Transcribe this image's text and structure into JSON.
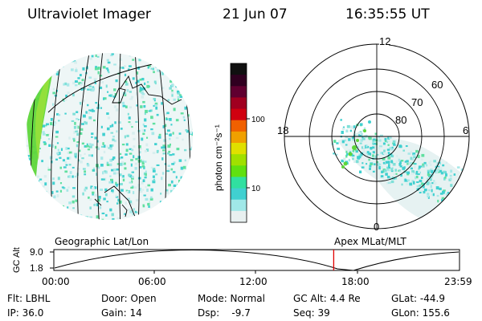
{
  "header": {
    "instrument": "Ultraviolet Imager",
    "date": "21 Jun 07",
    "time": "16:35:55 UT"
  },
  "colorbar": {
    "unit_label": "photon cm⁻²s⁻¹",
    "ticks": [
      "100",
      "10"
    ],
    "colors": [
      "#101010",
      "#300020",
      "#600030",
      "#a00020",
      "#d00010",
      "#f06000",
      "#f0a000",
      "#e0e000",
      "#a0e000",
      "#60e010",
      "#30e0a0",
      "#40d0d0",
      "#a0e8e8",
      "#e8f0f0"
    ]
  },
  "panels": {
    "left_label": "Geographic Lat/Lon",
    "right_label": "Apex  MLat/MLT"
  },
  "polar": {
    "clock": {
      "top": "12",
      "left": "18",
      "right": "6",
      "bottom": "0"
    },
    "lat_rings": [
      "60",
      "70",
      "80"
    ]
  },
  "altitude_plot": {
    "ylabel": "GC Alt",
    "yticks": [
      "9.0",
      "1.8"
    ],
    "xticks": [
      "00:00",
      "06:00",
      "12:00",
      "18:00",
      "23:59"
    ],
    "marker_time_fraction": 0.69
  },
  "info": {
    "row1": {
      "flt": "Flt: LBHL",
      "door": "Door: Open",
      "mode": "Mode: Normal",
      "gcalt": "GC Alt: 4.4 Re",
      "glat": "GLat: -44.9"
    },
    "row2": {
      "ip": "IP: 36.0",
      "gain": "Gain: 14",
      "dsp": "Dsp:    -9.7",
      "seq": "Seq: 39",
      "glon": "GLon: 155.6"
    }
  }
}
